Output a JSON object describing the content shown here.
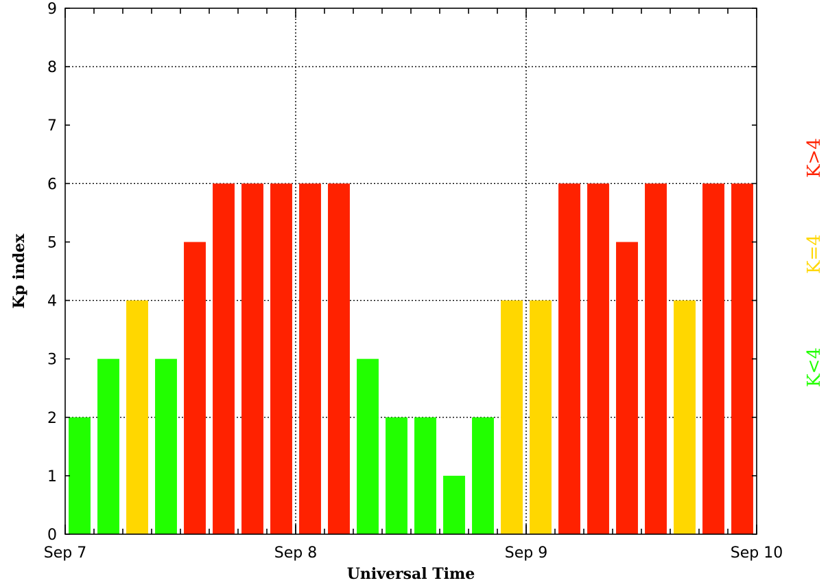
{
  "chart_data": {
    "type": "bar",
    "title": "",
    "xlabel": "Universal Time",
    "ylabel": "Kp index",
    "ylim": [
      0,
      9
    ],
    "yticks": [
      "0",
      "1",
      "2",
      "3",
      "4",
      "5",
      "6",
      "7",
      "8",
      "9"
    ],
    "xtick_labels": [
      "Sep 7",
      "Sep 8",
      "Sep 9",
      "Sep 10"
    ],
    "bars_per_day": 8,
    "values": [
      2,
      3,
      4,
      3,
      5,
      6,
      6,
      6,
      6,
      6,
      3,
      2,
      2,
      1,
      2,
      4,
      4,
      6,
      6,
      5,
      6,
      4,
      6,
      6
    ],
    "grid": true,
    "legend": [
      {
        "label": "K<4",
        "color": "#22ff00"
      },
      {
        "label": "K=4",
        "color": "#ffd700"
      },
      {
        "label": "K>4",
        "color": "#ff2200"
      }
    ],
    "legend_position": "right",
    "colors": {
      "low": "#22ff00",
      "equal": "#ffd700",
      "high": "#ff2200"
    }
  }
}
